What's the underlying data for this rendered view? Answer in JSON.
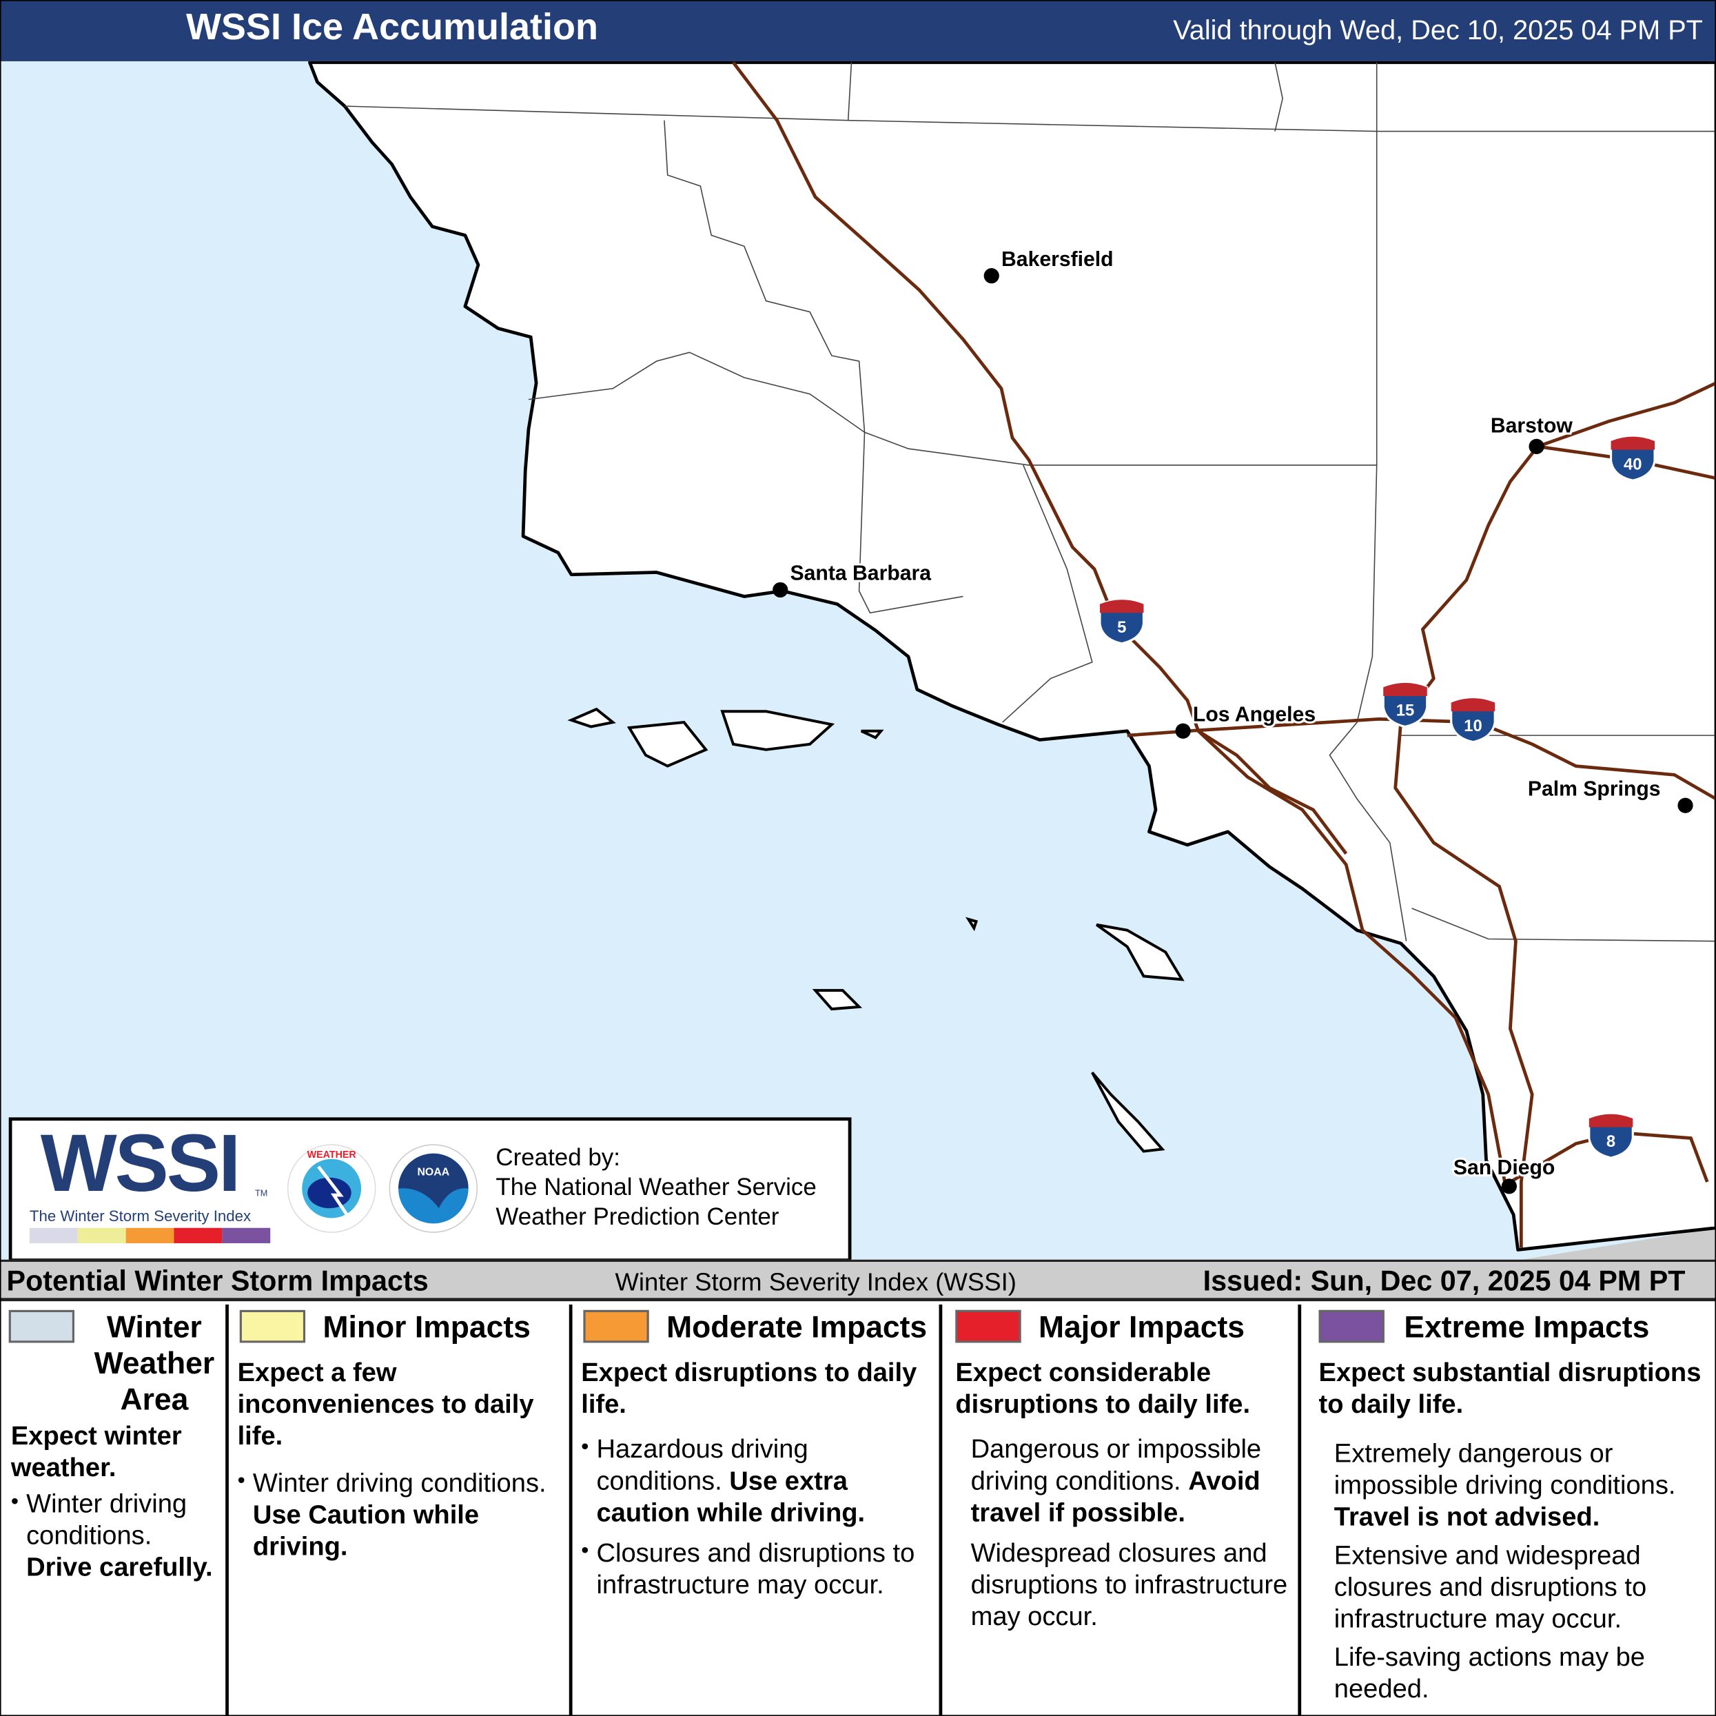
{
  "header": {
    "title": "WSSI Ice Accumulation",
    "valid": "Valid through Wed, Dec 10, 2025 04 PM PT"
  },
  "map": {
    "colors": {
      "ocean": "#dbeefc",
      "land": "#ffffff",
      "highway": "#6b2a0e",
      "mexico": "#cccccc"
    },
    "cities": [
      {
        "name": "Bakersfield"
      },
      {
        "name": "Santa Barbara"
      },
      {
        "name": "Los Angeles"
      },
      {
        "name": "Barstow"
      },
      {
        "name": "Palm Springs"
      },
      {
        "name": "San Diego"
      }
    ],
    "interstates": [
      "5",
      "15",
      "10",
      "40",
      "8"
    ]
  },
  "logo": {
    "wssi": "WSSI",
    "tm": "TM",
    "subtitle": "The Winter Storm Severity Index",
    "bar_colors": [
      "#d9d9e8",
      "#eeee99",
      "#f59a35",
      "#e5202a",
      "#7a52a0"
    ],
    "nws_icon": "nws-logo",
    "noaa_icon": "noaa-logo",
    "created_by": "Created by:",
    "org1": "The National Weather Service",
    "org2": "Weather Prediction Center"
  },
  "legend": {
    "left": "Potential Winter Storm Impacts",
    "center": "Winter Storm Severity Index (WSSI)",
    "issued": "Issued: Sun, Dec 07, 2025 04 PM PT",
    "categories": [
      {
        "name": "Winter Weather Area",
        "color": "#d3dfe8",
        "heading": "Expect winter weather.",
        "b1": "Winter driving conditions.",
        "b1b": "Drive carefully."
      },
      {
        "name": "Minor Impacts",
        "color": "#faf5a3",
        "heading": "Expect a few inconveniences to daily life.",
        "b1": "Winter driving conditions.",
        "b1b": "Use Caution while driving."
      },
      {
        "name": "Moderate Impacts",
        "color": "#f59a35",
        "heading": "Expect disruptions to daily life.",
        "b1": "Hazardous driving conditions.",
        "b1b": "Use extra caution while driving.",
        "b2": "Closures and disruptions to infrastructure may occur."
      },
      {
        "name": "Major Impacts",
        "color": "#e5202a",
        "heading": "Expect considerable disruptions to daily life.",
        "p1": "Dangerous or impossible driving conditions.",
        "p1b": "Avoid travel if possible.",
        "p2": "Widespread closures and disruptions to infrastructure may occur."
      },
      {
        "name": "Extreme Impacts",
        "color": "#7a52a0",
        "heading": "Expect substantial disruptions to daily life.",
        "p1": "Extremely dangerous or impossible driving conditions.",
        "p1b": "Travel is not advised.",
        "p2": "Extensive and widespread closures and disruptions to infrastructure may occur.",
        "p3": "Life-saving actions may be needed."
      }
    ]
  }
}
